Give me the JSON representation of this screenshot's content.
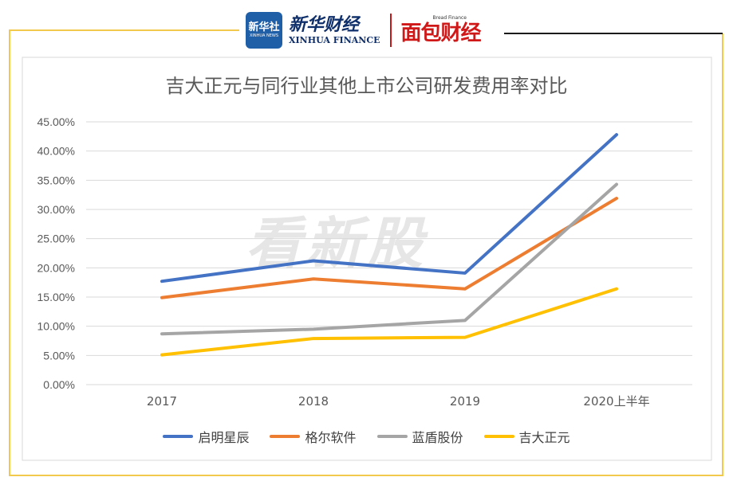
{
  "brand": {
    "xinhua_logo_cn": "新华社",
    "xinhua_logo_en": "XINHUA NEWS",
    "xinhua_finance_cn": "新华财经",
    "xinhua_finance_en": "XINHUA FINANCE",
    "bread_finance_en": "Bread Finance",
    "bread_finance_cn": "面包财经"
  },
  "watermark": "看新股",
  "colors": {
    "frame_border": "#f2c94c",
    "frame_top": "#1a1a1a",
    "grid": "#d9d9d9",
    "axis_text": "#595959"
  },
  "chart_data": {
    "type": "line",
    "title": "吉大正元与同行业其他上市公司研发费用率对比",
    "categories": [
      "2017",
      "2018",
      "2019",
      "2020上半年"
    ],
    "y_tick_labels": [
      "0.00%",
      "5.00%",
      "10.00%",
      "15.00%",
      "20.00%",
      "25.00%",
      "30.00%",
      "35.00%",
      "40.00%",
      "45.00%"
    ],
    "ylim": [
      0,
      45
    ],
    "y_step": 5,
    "grid": true,
    "legend_position": "bottom",
    "series": [
      {
        "name": "启明星辰",
        "color": "#4472c4",
        "values": [
          17.7,
          21.2,
          19.1,
          42.8
        ]
      },
      {
        "name": "格尔软件",
        "color": "#ed7d31",
        "values": [
          14.9,
          18.1,
          16.4,
          31.9
        ]
      },
      {
        "name": "蓝盾股份",
        "color": "#a5a5a5",
        "values": [
          8.7,
          9.5,
          11.0,
          34.3
        ]
      },
      {
        "name": "吉大正元",
        "color": "#ffc000",
        "values": [
          5.1,
          7.9,
          8.1,
          16.4
        ]
      }
    ]
  }
}
